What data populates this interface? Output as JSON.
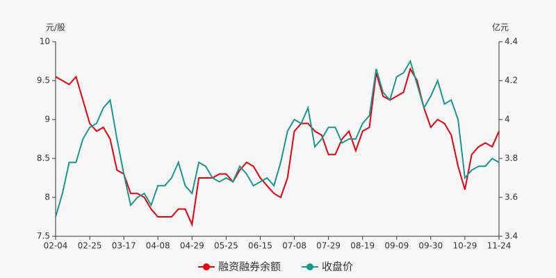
{
  "chart_data": {
    "type": "line",
    "y_label": "元/股",
    "y2_label": "亿元",
    "categories": [
      "02-04",
      null,
      null,
      null,
      null,
      "02-25",
      null,
      null,
      null,
      null,
      "03-17",
      null,
      null,
      null,
      null,
      "04-08",
      null,
      null,
      null,
      null,
      "04-29",
      null,
      null,
      null,
      null,
      "05-25",
      null,
      null,
      null,
      null,
      "06-15",
      null,
      null,
      null,
      null,
      "07-08",
      null,
      null,
      null,
      null,
      "07-29",
      null,
      null,
      null,
      null,
      "08-19",
      null,
      null,
      null,
      null,
      "09-09",
      null,
      null,
      null,
      null,
      "09-30",
      null,
      null,
      null,
      null,
      "10-29",
      null,
      null,
      null,
      null,
      "11-24"
    ],
    "series": [
      {
        "name": "融资融券余额",
        "color": "#e8000b",
        "axis": "y2",
        "values": [
          4.22,
          4.2,
          4.18,
          4.22,
          4.1,
          3.98,
          3.94,
          3.96,
          3.9,
          3.74,
          3.72,
          3.62,
          3.62,
          3.6,
          3.54,
          3.5,
          3.5,
          3.5,
          3.54,
          3.54,
          3.46,
          3.7,
          3.7,
          3.7,
          3.72,
          3.72,
          3.68,
          3.74,
          3.78,
          3.76,
          3.7,
          3.66,
          3.62,
          3.6,
          3.7,
          3.94,
          3.98,
          3.98,
          3.94,
          3.92,
          3.82,
          3.82,
          3.9,
          3.94,
          3.84,
          3.94,
          3.96,
          4.24,
          4.12,
          4.1,
          4.12,
          4.14,
          4.26,
          4.2,
          4.06,
          3.96,
          4.0,
          3.98,
          3.92,
          3.76,
          3.64,
          3.82,
          3.86,
          3.88,
          3.86,
          3.94
        ]
      },
      {
        "name": "收盘价",
        "color": "#1a9690",
        "values": [
          7.75,
          8.05,
          8.45,
          8.45,
          8.75,
          8.9,
          8.95,
          9.15,
          9.25,
          8.75,
          8.3,
          7.9,
          8.0,
          8.05,
          7.9,
          8.15,
          8.15,
          8.25,
          8.45,
          8.15,
          8.05,
          8.45,
          8.4,
          8.25,
          8.2,
          8.25,
          8.2,
          8.4,
          8.3,
          8.15,
          8.2,
          8.25,
          8.15,
          8.45,
          8.85,
          9.0,
          8.95,
          9.15,
          8.65,
          8.75,
          8.9,
          8.9,
          8.7,
          8.75,
          8.75,
          8.95,
          9.05,
          9.65,
          9.35,
          9.25,
          9.55,
          9.6,
          9.75,
          9.45,
          9.15,
          9.3,
          9.5,
          9.2,
          9.25,
          9.0,
          8.25,
          8.35,
          8.4,
          8.4,
          8.5,
          8.45
        ]
      }
    ],
    "ylim": [
      7.5,
      10
    ],
    "yticks": [
      7.5,
      8,
      8.5,
      9,
      9.5,
      10
    ],
    "y2lim": [
      3.4,
      4.4
    ],
    "y2ticks": [
      3.4,
      3.6,
      3.8,
      4,
      4.2,
      4.4
    ],
    "grid": false
  }
}
